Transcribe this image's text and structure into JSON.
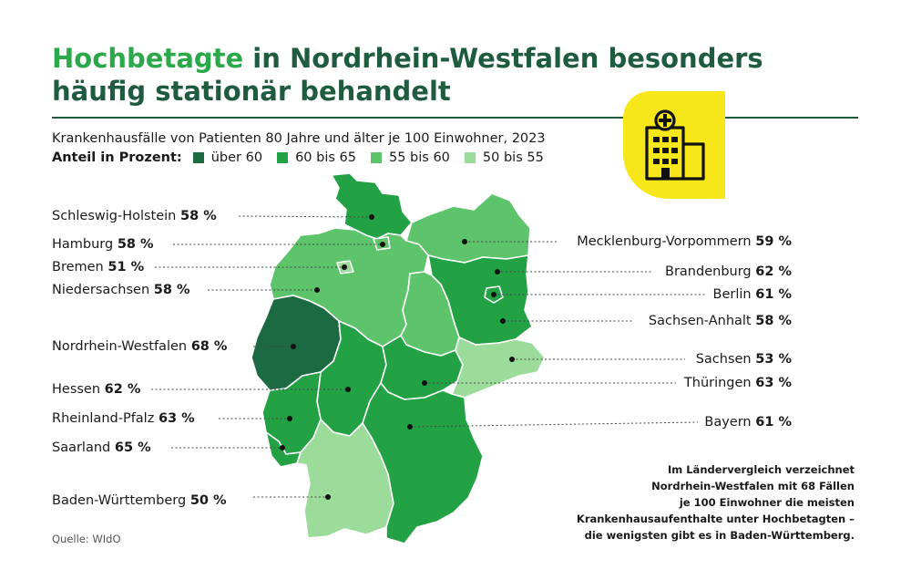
{
  "title": {
    "highlight": "Hochbetagte",
    "rest_line1": " in Nordrhein-Westfalen besonders",
    "line2": "häufig stationär behandelt"
  },
  "subtitle": "Krankenhausfälle von Patienten 80 Jahre und älter je 100 Einwohner, 2023",
  "legend": {
    "label": "Anteil in Prozent:",
    "items": [
      {
        "label": "über 60",
        "color": "#1c6a41"
      },
      {
        "label": "60 bis 65",
        "color": "#23a145"
      },
      {
        "label": "55 bis 60",
        "color": "#5dc46c"
      },
      {
        "label": "50 bis 55",
        "color": "#9bdc9a"
      }
    ]
  },
  "icon": "hospital-building-icon",
  "badge_color": "#f6e61a",
  "states": [
    {
      "name": "Schleswig-Holstein",
      "value": "58 %"
    },
    {
      "name": "Hamburg",
      "value": "58 %"
    },
    {
      "name": "Bremen",
      "value": "51 %"
    },
    {
      "name": "Niedersachsen",
      "value": "58 %"
    },
    {
      "name": "Nordrhein-Westfalen",
      "value": "68 %"
    },
    {
      "name": "Hessen",
      "value": "62 %"
    },
    {
      "name": "Rheinland-Pfalz",
      "value": "63 %"
    },
    {
      "name": "Saarland",
      "value": "65 %"
    },
    {
      "name": "Baden-Württemberg",
      "value": "50 %"
    },
    {
      "name": "Mecklenburg-Vorpommern",
      "value": "59 %"
    },
    {
      "name": "Brandenburg",
      "value": "62 %"
    },
    {
      "name": "Berlin",
      "value": "61 %"
    },
    {
      "name": "Sachsen-Anhalt",
      "value": "58 %"
    },
    {
      "name": "Sachsen",
      "value": "53 %"
    },
    {
      "name": "Thüringen",
      "value": "63 %"
    },
    {
      "name": "Bayern",
      "value": "61 %"
    }
  ],
  "note": {
    "line1": "Im Ländervergleich verzeichnet",
    "line2": "Nordrhein-Westfalen mit 68 Fällen",
    "line3": "je 100 Einwohner die meisten",
    "line4": "Krankenhausaufenthalte unter Hochbetagten –",
    "line5": "die wenigsten gibt es in Baden-Württemberg."
  },
  "source": "Quelle: WIdO"
}
